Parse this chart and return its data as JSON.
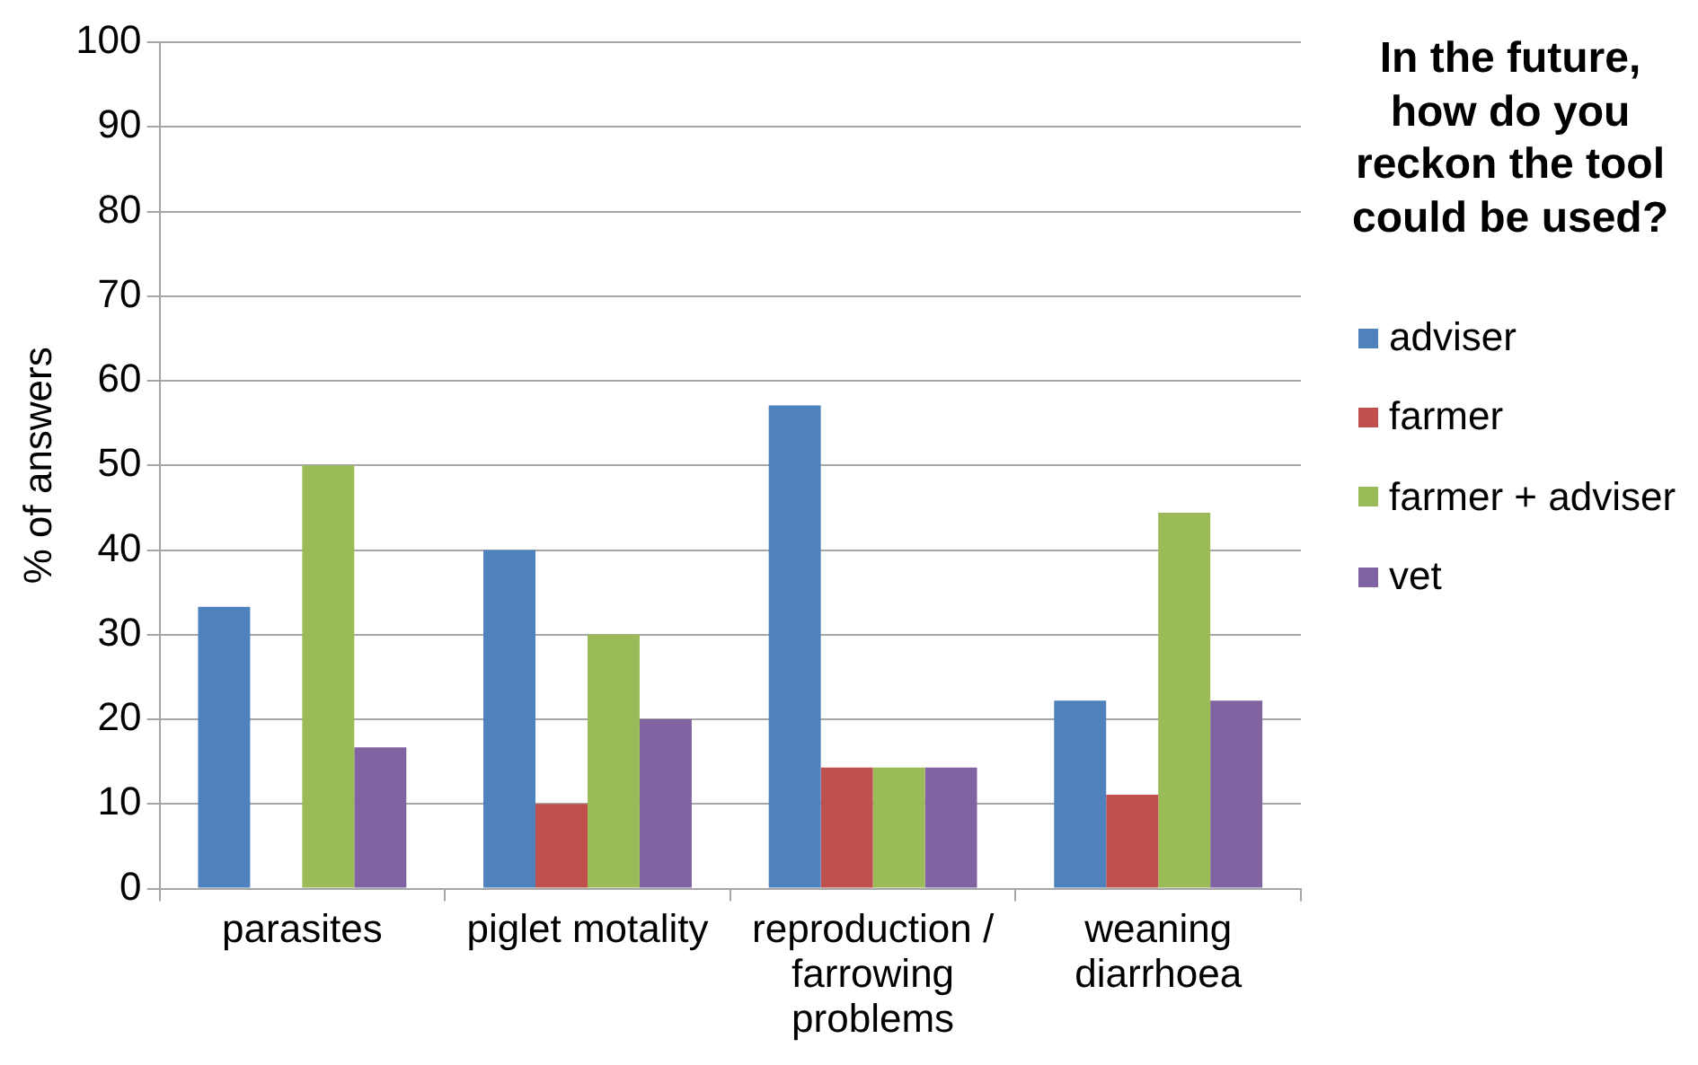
{
  "chart_data": {
    "type": "bar",
    "ylabel": "% of answers",
    "legend_title": "In the future, how do you reckon the tool could be used?",
    "categories": [
      "parasites",
      "piglet motality",
      "reproduction / farrowing problems",
      "weaning diarrhoea"
    ],
    "series": [
      {
        "name": "adviser",
        "color": "#4f81bd",
        "values": [
          33.3,
          40,
          57.1,
          22.2
        ]
      },
      {
        "name": "farmer",
        "color": "#c0504d",
        "values": [
          0,
          10,
          14.3,
          11.1
        ]
      },
      {
        "name": "farmer + adviser",
        "color": "#9bbb59",
        "values": [
          50,
          30,
          14.3,
          44.4
        ]
      },
      {
        "name": "vet",
        "color": "#8064a2",
        "values": [
          16.7,
          20,
          14.3,
          22.2
        ]
      }
    ],
    "ylim": [
      0,
      100
    ],
    "yticks": [
      0,
      10,
      20,
      30,
      40,
      50,
      60,
      70,
      80,
      90,
      100
    ],
    "grid": "y",
    "legend": "right"
  }
}
